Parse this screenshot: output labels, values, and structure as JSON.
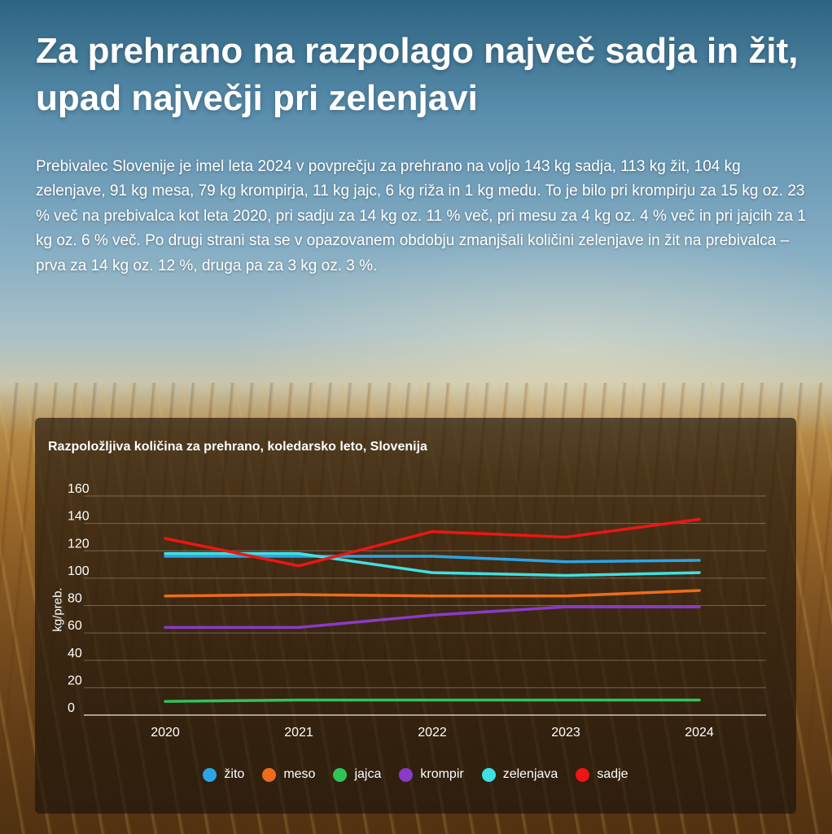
{
  "headline": "Za prehrano na razpolago največ sadja in žit, upad največji pri zelenjavi",
  "lead": "Prebivalec Slovenije je imel leta 2024 v povprečju za prehrano na voljo 143 kg sadja, 113 kg žit, 104 kg zelenjave, 91 kg mesa, 79 kg krompirja, 11 kg jajc, 6 kg riža in 1 kg medu. To je bilo pri krompirju za 15 kg oz. 23 % več na prebivalca kot leta 2020, pri sadju za 14 kg oz. 11 % več, pri mesu za 4 kg oz. 4 % več in pri jajcih za 1 kg oz. 6 % več. Po drugi strani sta se v opazovanem obdobju zmanjšali količini zelenjave in žit na prebivalca – prva za 14 kg oz. 12 %, druga pa za 3 kg oz. 3 %.",
  "chart_data": {
    "type": "line",
    "title": "Razpoložljiva količina za prehrano, koledarsko leto, Slovenija",
    "xlabel": "",
    "ylabel": "kg/preb.",
    "x": [
      "2020",
      "2021",
      "2022",
      "2023",
      "2024"
    ],
    "ylim": [
      0,
      160
    ],
    "yticks": [
      0,
      20,
      40,
      60,
      80,
      100,
      120,
      140,
      160
    ],
    "grid": true,
    "legend_position": "bottom",
    "series": [
      {
        "name": "žito",
        "color": "#2aa5e6",
        "values": [
          116,
          116,
          116,
          112,
          113
        ]
      },
      {
        "name": "meso",
        "color": "#ee6b1c",
        "values": [
          87,
          88,
          87,
          87,
          91
        ]
      },
      {
        "name": "jajca",
        "color": "#2fc45a",
        "values": [
          10,
          11,
          11,
          11,
          11
        ]
      },
      {
        "name": "krompir",
        "color": "#8b3ac8",
        "values": [
          64,
          64,
          73,
          79,
          79
        ]
      },
      {
        "name": "zelenjava",
        "color": "#3fe0e4",
        "values": [
          118,
          118,
          104,
          102,
          104
        ]
      },
      {
        "name": "sadje",
        "color": "#ee1515",
        "values": [
          129,
          109,
          134,
          130,
          143
        ]
      }
    ]
  }
}
